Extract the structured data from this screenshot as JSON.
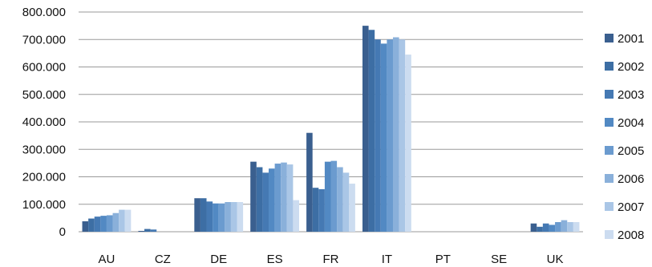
{
  "chart_data": {
    "type": "bar",
    "categories": [
      "AU",
      "CZ",
      "DE",
      "ES",
      "FR",
      "IT",
      "PT",
      "SE",
      "UK"
    ],
    "ylim": [
      0,
      800000
    ],
    "ytick_values": [
      0,
      100000,
      200000,
      300000,
      400000,
      500000,
      600000,
      700000,
      800000
    ],
    "ytick_labels": [
      "0",
      "100.000",
      "200.000",
      "300.000",
      "400.000",
      "500.000",
      "600.000",
      "700.000",
      "800.000"
    ],
    "grid": true,
    "legend_position": "right",
    "series": [
      {
        "name": "2001",
        "color": "#3a5f8f",
        "values": [
          38000,
          3000,
          122000,
          255000,
          360000,
          750000,
          0,
          0,
          30000
        ]
      },
      {
        "name": "2002",
        "color": "#3d6ea4",
        "values": [
          48000,
          10000,
          122000,
          235000,
          160000,
          735000,
          0,
          0,
          18000
        ]
      },
      {
        "name": "2003",
        "color": "#4579b3",
        "values": [
          55000,
          8000,
          110000,
          215000,
          155000,
          700000,
          0,
          0,
          30000
        ]
      },
      {
        "name": "2004",
        "color": "#5289c3",
        "values": [
          58000,
          0,
          103000,
          230000,
          255000,
          685000,
          0,
          0,
          25000
        ]
      },
      {
        "name": "2005",
        "color": "#6b9bcf",
        "values": [
          60000,
          0,
          103000,
          248000,
          258000,
          700000,
          0,
          0,
          35000
        ]
      },
      {
        "name": "2006",
        "color": "#8ab0da",
        "values": [
          68000,
          0,
          108000,
          252000,
          235000,
          708000,
          0,
          0,
          42000
        ]
      },
      {
        "name": "2007",
        "color": "#aac6e6",
        "values": [
          80000,
          0,
          108000,
          245000,
          215000,
          700000,
          0,
          0,
          35000
        ]
      },
      {
        "name": "2008",
        "color": "#ccdcf0",
        "values": [
          80000,
          0,
          108000,
          115000,
          175000,
          645000,
          0,
          0,
          35000
        ]
      }
    ]
  }
}
